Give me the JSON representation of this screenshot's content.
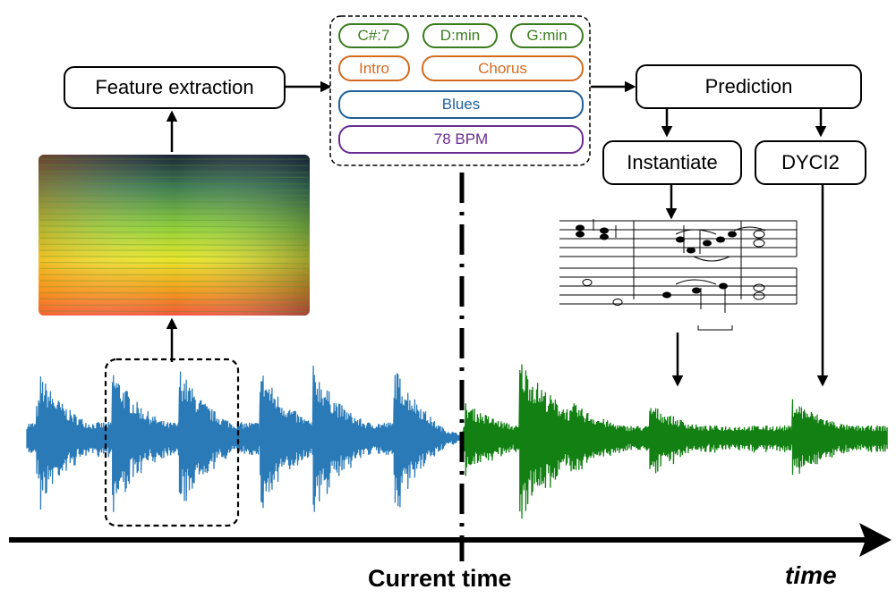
{
  "diagram": {
    "feature_extraction": "Feature extraction",
    "prediction": "Prediction",
    "instantiate": "Instantiate",
    "dyci2": "DYCI2",
    "current_time": "Current time",
    "time": "time"
  },
  "features": {
    "chords": [
      "C#:7",
      "D:min",
      "G:min"
    ],
    "structure": [
      "Intro",
      "Chorus"
    ],
    "genre": "Blues",
    "tempo": "78 BPM"
  },
  "colors": {
    "chord": "#3a7d1e",
    "structure": "#d46a1e",
    "genre": "#1f5f9a",
    "tempo": "#6a2c91",
    "past_waveform": "#2a7ab8",
    "future_waveform": "#128012"
  },
  "icons": [
    "spectrogram-image",
    "sheet-music-image",
    "waveform-image"
  ]
}
